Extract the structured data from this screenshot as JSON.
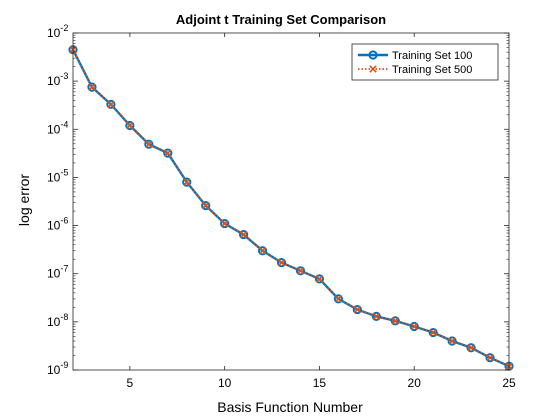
{
  "chart_data": {
    "type": "line",
    "title": "Adjoint t Training Set Comparison",
    "xlabel": "Basis Function Number",
    "ylabel": "log error",
    "x_scale": "linear",
    "y_scale": "log",
    "xlim": [
      2,
      25
    ],
    "ylim": [
      1e-09,
      0.01
    ],
    "x_ticks": [
      5,
      10,
      15,
      20,
      25
    ],
    "x_tick_labels": [
      "5",
      "10",
      "15",
      "20",
      "25"
    ],
    "y_ticks": [
      1e-09,
      1e-08,
      1e-07,
      1e-06,
      1e-05,
      0.0001,
      0.001,
      0.01
    ],
    "y_tick_labels": [
      {
        "base": "10",
        "exp": "-9"
      },
      {
        "base": "10",
        "exp": "-8"
      },
      {
        "base": "10",
        "exp": "-7"
      },
      {
        "base": "10",
        "exp": "-6"
      },
      {
        "base": "10",
        "exp": "-5"
      },
      {
        "base": "10",
        "exp": "-4"
      },
      {
        "base": "10",
        "exp": "-3"
      },
      {
        "base": "10",
        "exp": "-2"
      }
    ],
    "grid": false,
    "legend_position": "top-right",
    "x": [
      2,
      3,
      4,
      5,
      6,
      7,
      8,
      9,
      10,
      11,
      12,
      13,
      14,
      15,
      16,
      17,
      18,
      19,
      20,
      21,
      22,
      23,
      24,
      25
    ],
    "series": [
      {
        "name": "Training Set 100",
        "color": "#0072BD",
        "line_style": "solid",
        "marker": "circle",
        "values": [
          0.0045,
          0.00075,
          0.00033,
          0.00012,
          4.9e-05,
          3.2e-05,
          8e-06,
          2.6e-06,
          1.1e-06,
          6.5e-07,
          3e-07,
          1.7e-07,
          1.15e-07,
          7.8e-08,
          3e-08,
          1.8e-08,
          1.3e-08,
          1.05e-08,
          8e-09,
          6e-09,
          4e-09,
          2.9e-09,
          1.8e-09,
          1.2e-09
        ]
      },
      {
        "name": "Training Set 500",
        "color": "#D95319",
        "line_style": "dotted",
        "marker": "x",
        "values": [
          0.0045,
          0.00075,
          0.00033,
          0.00012,
          4.9e-05,
          3.2e-05,
          8e-06,
          2.6e-06,
          1.1e-06,
          6.5e-07,
          3e-07,
          1.7e-07,
          1.15e-07,
          7.8e-08,
          3e-08,
          1.8e-08,
          1.3e-08,
          1.05e-08,
          8e-09,
          6e-09,
          4e-09,
          2.9e-09,
          1.8e-09,
          1.2e-09
        ]
      }
    ]
  }
}
